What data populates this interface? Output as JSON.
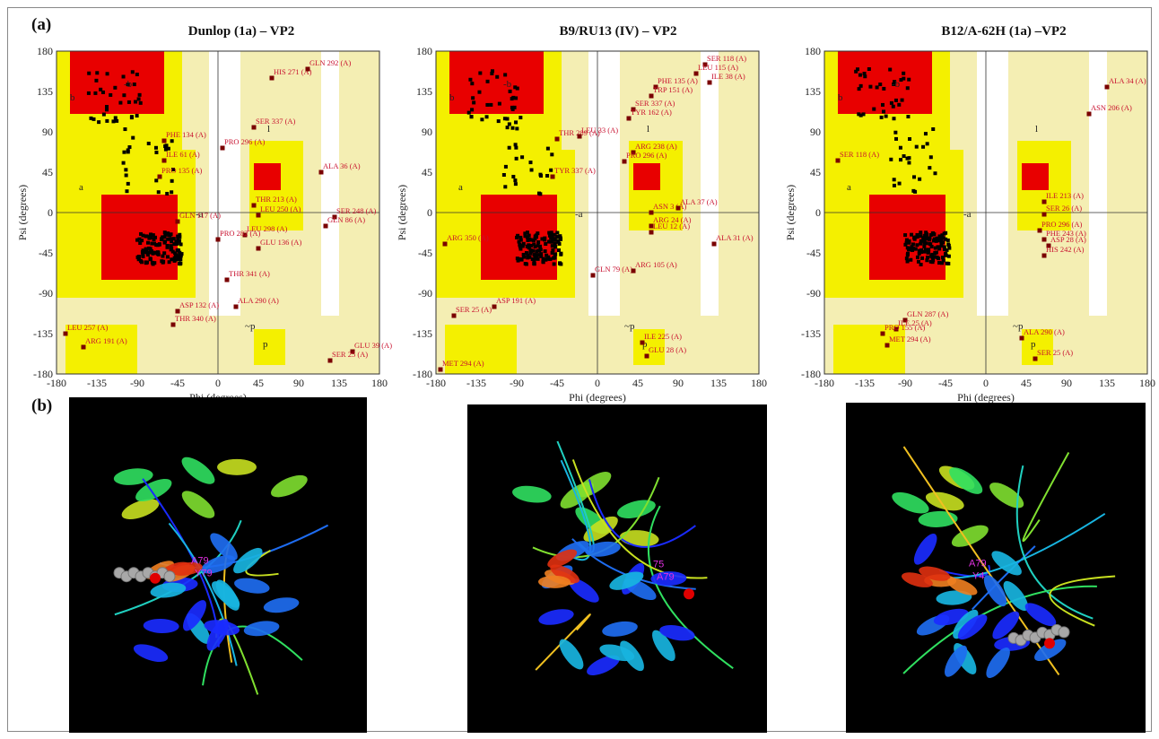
{
  "figure": {
    "panel_a_label": "(a)",
    "panel_b_label": "(b)"
  },
  "plots": [
    {
      "title": "Dunlop (1a) – VP2",
      "xlabel": "Phi (degrees)",
      "ylabel": "Psi (degrees)",
      "residues": [
        {
          "label": "HIS 271 (A)",
          "phi": 60,
          "psi": 150
        },
        {
          "label": "GLN 292 (A)",
          "phi": 100,
          "psi": 160
        },
        {
          "label": "SER 337 (A)",
          "phi": 40,
          "psi": 95
        },
        {
          "label": "PHE 134 (A)",
          "phi": -60,
          "psi": 80
        },
        {
          "label": "PRO 296 (A)",
          "phi": 5,
          "psi": 72
        },
        {
          "label": "ILE 61 (A)",
          "phi": -60,
          "psi": 58
        },
        {
          "label": "PRO 135 (A)",
          "phi": -65,
          "psi": 40
        },
        {
          "label": "ALA 36 (A)",
          "phi": 115,
          "psi": 45
        },
        {
          "label": "THR 213 (A)",
          "phi": 40,
          "psi": 8
        },
        {
          "label": "LEU 250 (A)",
          "phi": 45,
          "psi": -3
        },
        {
          "label": "GLN 117 (A)",
          "phi": -45,
          "psi": -10
        },
        {
          "label": "SER 248 (A)",
          "phi": 130,
          "psi": -5
        },
        {
          "label": "GLN 86 (A)",
          "phi": 120,
          "psi": -15
        },
        {
          "label": "LEU 298 (A)",
          "phi": 30,
          "psi": -25
        },
        {
          "label": "PRO 282 (A)",
          "phi": 0,
          "psi": -30
        },
        {
          "label": "GLU 136 (A)",
          "phi": 45,
          "psi": -40
        },
        {
          "label": "THR 341 (A)",
          "phi": 10,
          "psi": -75
        },
        {
          "label": "ALA 290 (A)",
          "phi": 20,
          "psi": -105
        },
        {
          "label": "ASP 132 (A)",
          "phi": -45,
          "psi": -110
        },
        {
          "label": "THR 340 (A)",
          "phi": -50,
          "psi": -125
        },
        {
          "label": "LEU 257 (A)",
          "phi": -170,
          "psi": -135
        },
        {
          "label": "ARG 191 (A)",
          "phi": -150,
          "psi": -150
        },
        {
          "label": "GLU 39 (A)",
          "phi": 150,
          "psi": -155
        },
        {
          "label": "SER 25 (A)",
          "phi": 125,
          "psi": -165
        }
      ]
    },
    {
      "title": "B9/RU13 (IV) – VP2",
      "xlabel": "Phi (degrees)",
      "ylabel": "Psi (degrees)",
      "residues": [
        {
          "label": "SER 118 (A)",
          "phi": 120,
          "psi": 165
        },
        {
          "label": "LEU 115 (A)",
          "phi": 110,
          "psi": 155
        },
        {
          "label": "PHE 135 (A)",
          "phi": 65,
          "psi": 140
        },
        {
          "label": "ILE 38 (A)",
          "phi": 125,
          "psi": 145
        },
        {
          "label": "TRP 151 (A)",
          "phi": 60,
          "psi": 130
        },
        {
          "label": "SER 337 (A)",
          "phi": 40,
          "psi": 115
        },
        {
          "label": "TYR 162 (A)",
          "phi": 35,
          "psi": 105
        },
        {
          "label": "THR 289 (A)",
          "phi": -45,
          "psi": 82
        },
        {
          "label": "LEU 33 (A)",
          "phi": -20,
          "psi": 85
        },
        {
          "label": "ARG 238 (A)",
          "phi": 40,
          "psi": 67
        },
        {
          "label": "PRO 296 (A)",
          "phi": 30,
          "psi": 57
        },
        {
          "label": "TYR 337 (A)",
          "phi": -50,
          "psi": 40
        },
        {
          "label": "ASN 3 (A)",
          "phi": 60,
          "psi": 0
        },
        {
          "label": "ALA 37 (A)",
          "phi": 90,
          "psi": 5
        },
        {
          "label": "ARG 24 (A)",
          "phi": 60,
          "psi": -15
        },
        {
          "label": "LEU 12 (A)",
          "phi": 60,
          "psi": -22
        },
        {
          "label": "ALA 31 (A)",
          "phi": 130,
          "psi": -35
        },
        {
          "label": "ARG 350 (A)",
          "phi": -170,
          "psi": -35
        },
        {
          "label": "GLN 79 (A)",
          "phi": -5,
          "psi": -70
        },
        {
          "label": "ARG 105 (A)",
          "phi": 40,
          "psi": -65
        },
        {
          "label": "ASP 191 (A)",
          "phi": -115,
          "psi": -105
        },
        {
          "label": "SER 25 (A)",
          "phi": -160,
          "psi": -115
        },
        {
          "label": "ILE 225 (A)",
          "phi": 50,
          "psi": -145
        },
        {
          "label": "GLU 28 (A)",
          "phi": 55,
          "psi": -160
        },
        {
          "label": "MET 294 (A)",
          "phi": -175,
          "psi": -175
        }
      ]
    },
    {
      "title": "B12/A-62H (1a) –VP2",
      "xlabel": "Phi (degrees)",
      "ylabel": "Psi (degrees)",
      "residues": [
        {
          "label": "ALA 34 (A)",
          "phi": 135,
          "psi": 140
        },
        {
          "label": "ASN 206 (A)",
          "phi": 115,
          "psi": 110
        },
        {
          "label": "SER 118 (A)",
          "phi": -165,
          "psi": 58
        },
        {
          "label": "ILE 213 (A)",
          "phi": 65,
          "psi": 12
        },
        {
          "label": "SER 26 (A)",
          "phi": 65,
          "psi": -2
        },
        {
          "label": "PRO 296 (A)",
          "phi": 60,
          "psi": -20
        },
        {
          "label": "PHE 243 (A)",
          "phi": 65,
          "psi": -30
        },
        {
          "label": "ASP 28 (A)",
          "phi": 70,
          "psi": -37
        },
        {
          "label": "HIS 242 (A)",
          "phi": 65,
          "psi": -48
        },
        {
          "label": "GLN 287 (A)",
          "phi": -90,
          "psi": -120
        },
        {
          "label": "ILE 25 (A)",
          "phi": -100,
          "psi": -130
        },
        {
          "label": "PRO 155 (A)",
          "phi": -115,
          "psi": -135
        },
        {
          "label": "MET 294 (A)",
          "phi": -110,
          "psi": -148
        },
        {
          "label": "ALA 290 (A)",
          "phi": 40,
          "psi": -140
        },
        {
          "label": "SER 25 (A)",
          "phi": 55,
          "psi": -163
        }
      ]
    }
  ],
  "structures": [
    {
      "labels": [
        "A79",
        "Y79"
      ]
    },
    {
      "labels": [
        "75",
        "A79"
      ]
    },
    {
      "labels": [
        "A79",
        "Y4"
      ]
    }
  ]
}
